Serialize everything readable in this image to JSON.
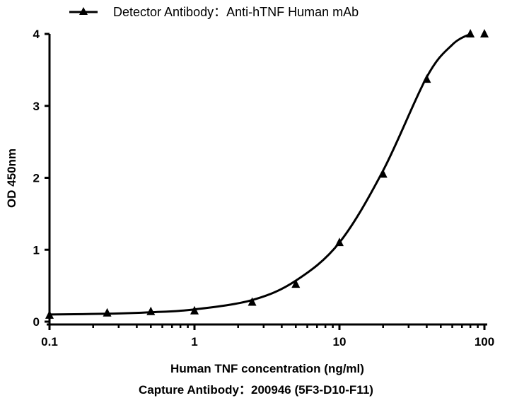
{
  "chart_data": {
    "type": "scatter",
    "legend": {
      "text": "Detector Antibody：Anti-hTNF Human mAb",
      "placement": "top"
    },
    "xlabel": "Human TNF concentration (ng/ml)",
    "subtitle": "Capture Antibody：200946 (5F3-D10-F11)",
    "ylabel": "OD 450nm",
    "xscale": "log",
    "xlim": [
      0.1,
      100
    ],
    "ylim": [
      0,
      4
    ],
    "xticks": [
      "0.1",
      "1",
      "10",
      "100"
    ],
    "yticks": [
      "0",
      "1",
      "2",
      "3",
      "4"
    ],
    "grid": false,
    "series": [
      {
        "name": "Detector Antibody：Anti-hTNF Human mAb",
        "marker": "triangle",
        "color": "#000000",
        "x": [
          0.1,
          0.25,
          0.5,
          1,
          2.5,
          5,
          10,
          20,
          40,
          80,
          100
        ],
        "y": [
          0.09,
          0.12,
          0.14,
          0.15,
          0.27,
          0.52,
          1.1,
          2.05,
          3.37,
          4.0,
          4.0
        ]
      }
    ],
    "fit_curve": {
      "x": [
        0.1,
        0.25,
        0.5,
        1,
        2.5,
        5,
        10,
        20,
        40,
        60,
        80
      ],
      "y": [
        0.1,
        0.11,
        0.13,
        0.17,
        0.3,
        0.57,
        1.1,
        2.1,
        3.4,
        3.85,
        4.0
      ]
    }
  }
}
